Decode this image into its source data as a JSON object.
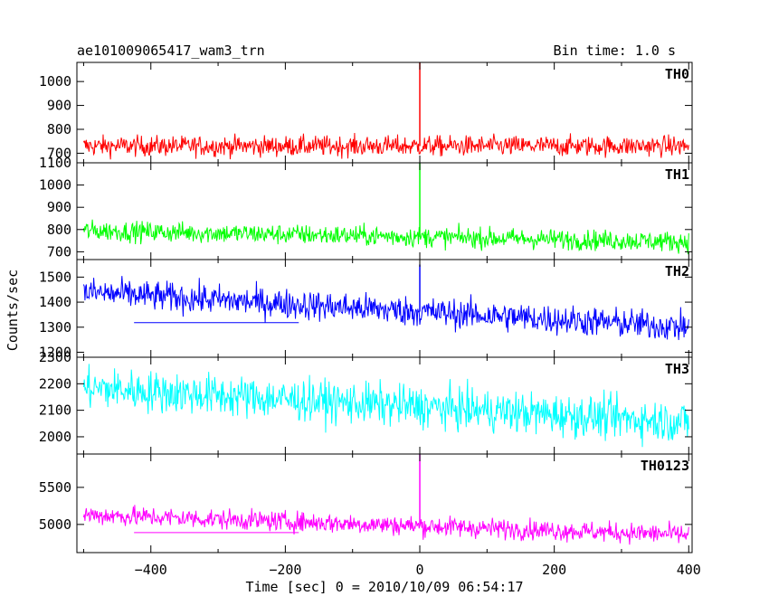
{
  "header": {
    "title": "ae101009065417_wam3_trn",
    "bin_time": "Bin time: 1.0 s"
  },
  "chart_data": {
    "type": "line",
    "xlabel": "Time [sec] 0 = 2010/10/09 06:54:17",
    "ylabel": "Counts/sec",
    "xlim": [
      -510,
      405
    ],
    "x_ticks": [
      -400,
      -200,
      0,
      200,
      400
    ],
    "grid": false,
    "marker_time": 0,
    "panels": [
      {
        "name": "TH0",
        "color": "#ff0000",
        "ylim": [
          660,
          1080
        ],
        "y_ticks": [
          700,
          800,
          900,
          1000
        ],
        "mean_start": 730,
        "mean_end": 730,
        "noise": 30,
        "spike_top": 1080
      },
      {
        "name": "TH1",
        "color": "#00ff00",
        "ylim": [
          665,
          1100
        ],
        "y_ticks": [
          700,
          800,
          900,
          1000,
          1100
        ],
        "mean_start": 795,
        "mean_end": 745,
        "noise": 32,
        "spike_top": 1100
      },
      {
        "name": "TH2",
        "color": "#0000ff",
        "ylim": [
          1180,
          1570
        ],
        "y_ticks": [
          1200,
          1300,
          1400,
          1500
        ],
        "mean_start": 1440,
        "mean_end": 1300,
        "noise": 42,
        "spike_top": 1550,
        "flat_segment": {
          "x": [
            -425,
            -180
          ],
          "y": 1318
        }
      },
      {
        "name": "TH3",
        "color": "#00ffff",
        "ylim": [
          1935,
          2300
        ],
        "y_ticks": [
          2000,
          2100,
          2200,
          2300
        ],
        "mean_start": 2185,
        "mean_end": 2055,
        "noise": 55
      },
      {
        "name": "TH0123",
        "color": "#ff00ff",
        "ylim": [
          4620,
          5950
        ],
        "y_ticks": [
          5000,
          5500
        ],
        "mean_start": 5130,
        "mean_end": 4860,
        "noise": 95,
        "spike_top": 5950,
        "flat_segment": {
          "x": [
            -425,
            -180
          ],
          "y": 4890
        }
      }
    ]
  }
}
